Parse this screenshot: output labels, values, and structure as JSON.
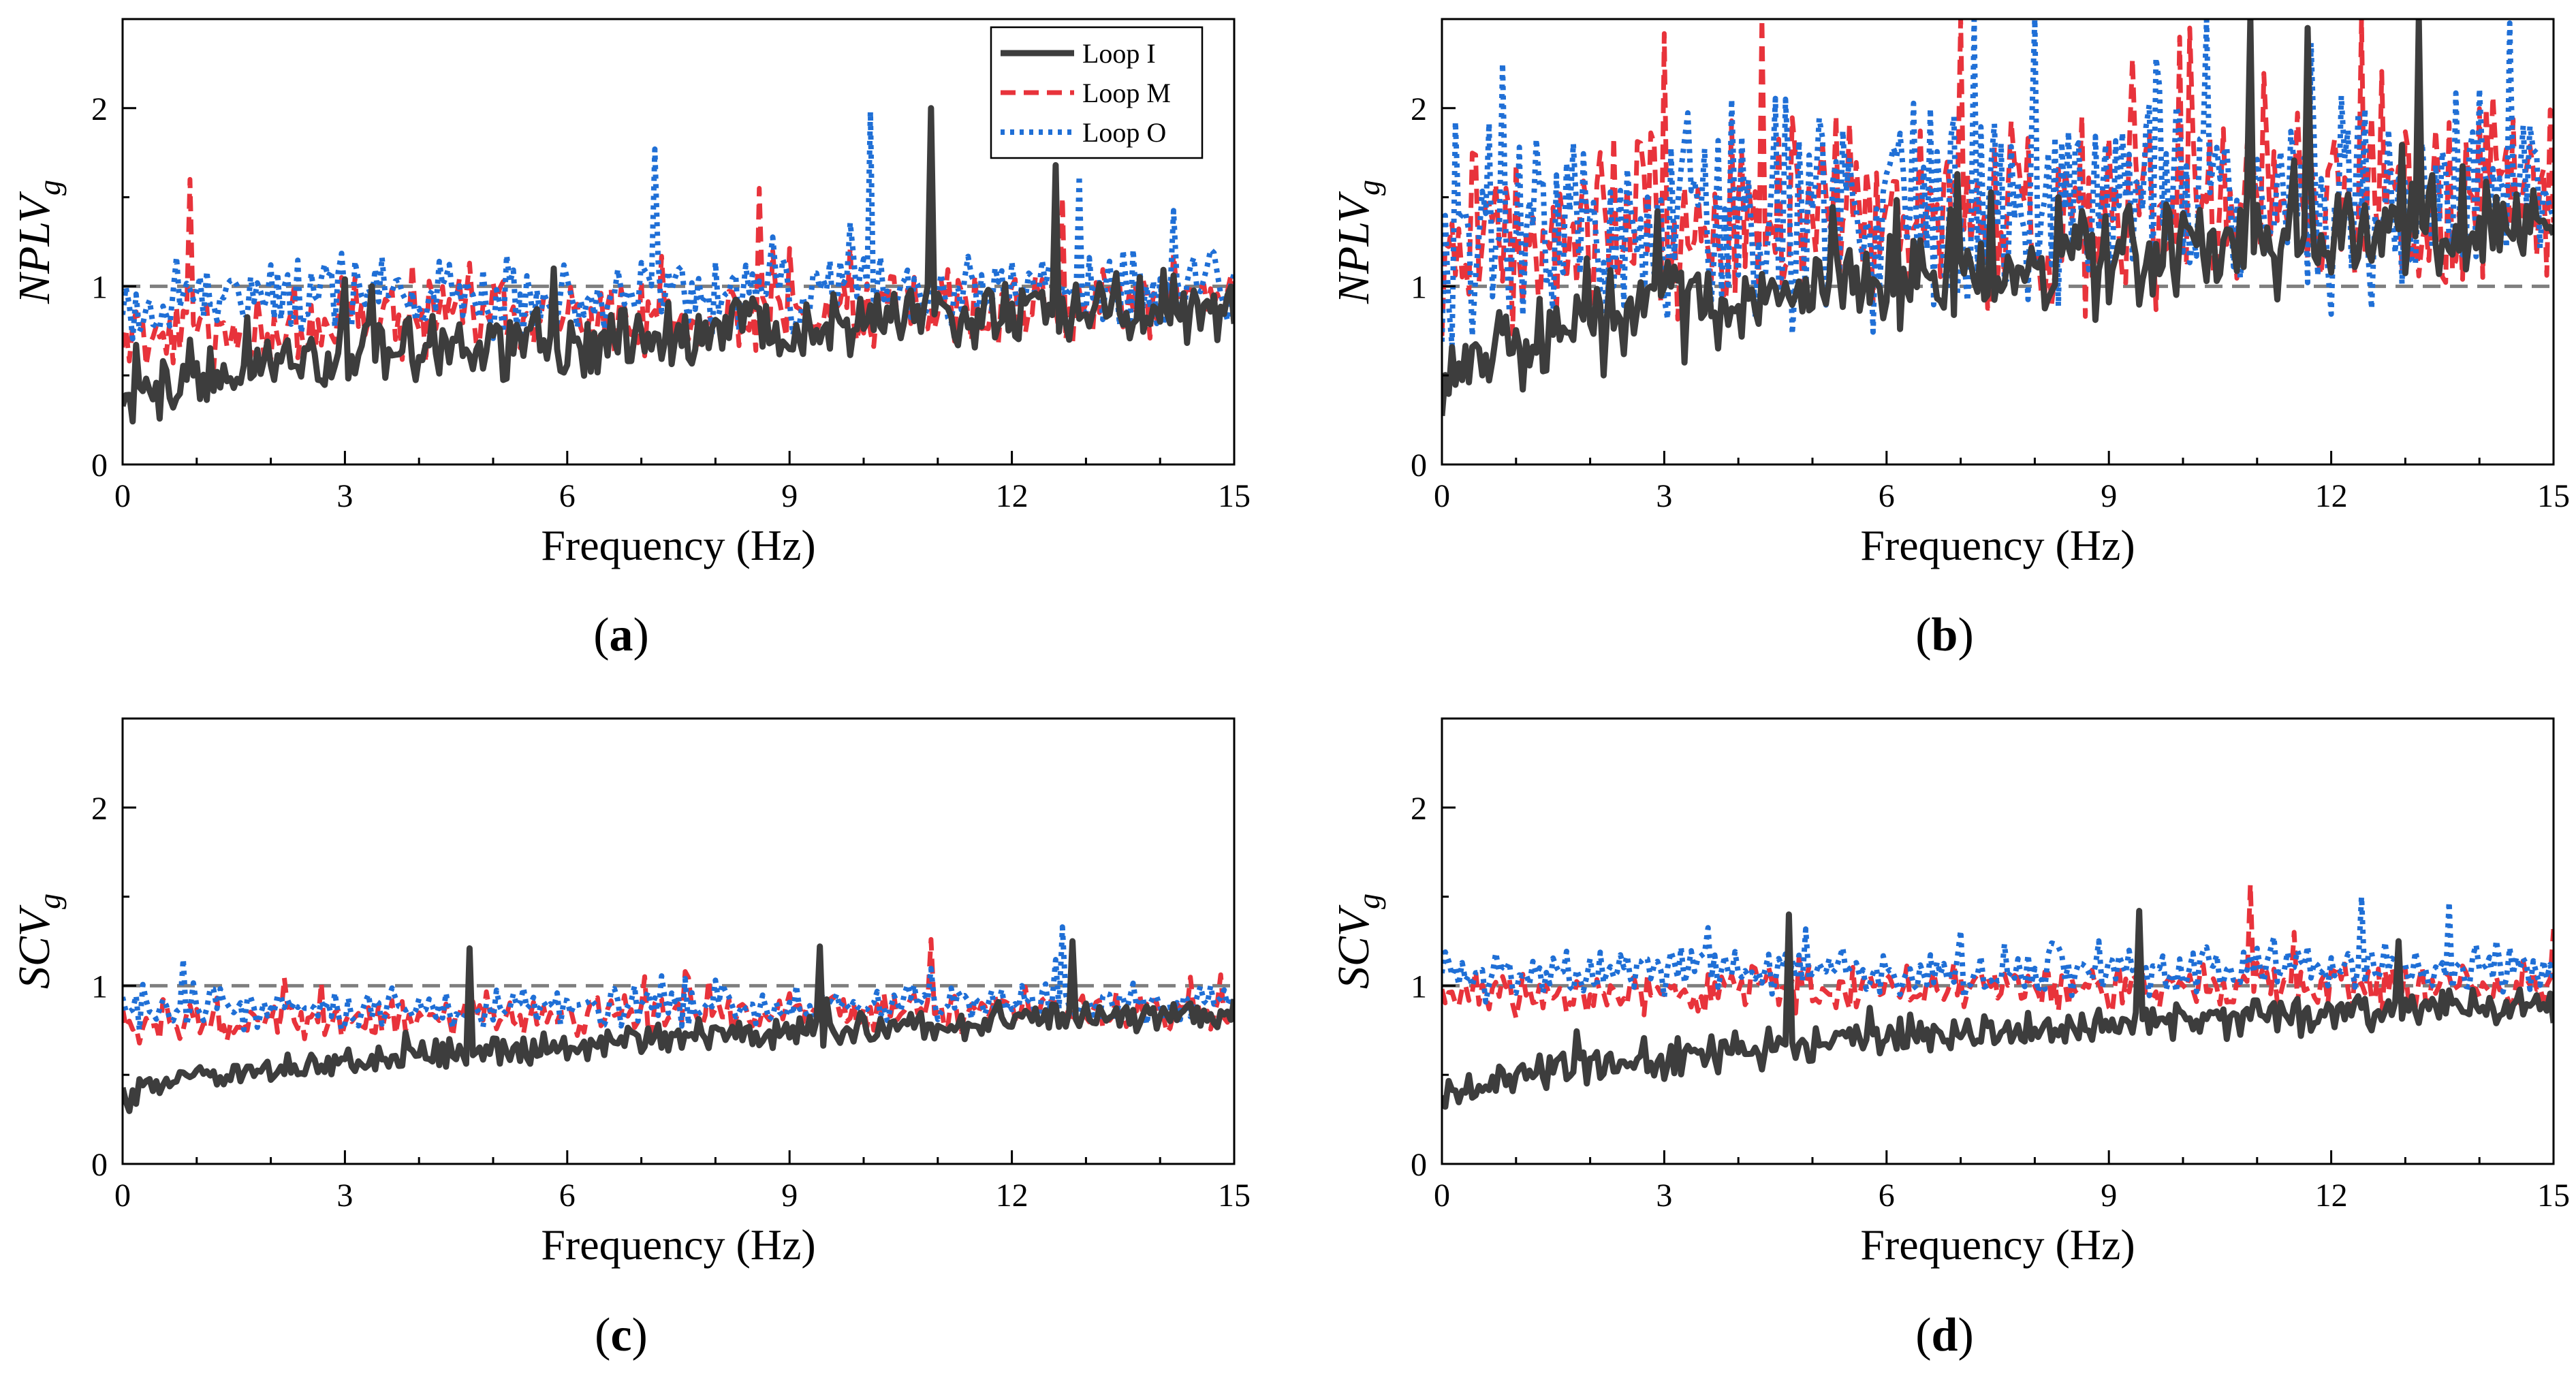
{
  "colors": {
    "loop_i": "#3d3d3d",
    "loop_m": "#e8333b",
    "loop_o": "#1f6fd6",
    "reference": "#7f7f7f",
    "axis": "#000000"
  },
  "legend": {
    "items": [
      "Loop I",
      "Loop M",
      "Loop O"
    ],
    "placement": "top-right of panel (a)"
  },
  "chart_data": [
    {
      "type": "line",
      "panel_label": "(a)",
      "xlabel": "Frequency (Hz)",
      "ylabel": "NPLV",
      "ylabel_sub": "g",
      "xlim": [
        0,
        15
      ],
      "ylim": [
        0,
        2.5
      ],
      "xticks": [
        "0",
        "3",
        "6",
        "9",
        "12",
        "15"
      ],
      "yticks": [
        "0",
        "1",
        "2"
      ],
      "reference_line": 1,
      "series_style": [
        {
          "name": "Loop I",
          "dash": "solid"
        },
        {
          "name": "Loop M",
          "dash": "dashed"
        },
        {
          "name": "Loop O",
          "dash": "dotted"
        }
      ],
      "series_profile": [
        {
          "name": "Loop I",
          "start": 0.35,
          "end": 0.9,
          "spread": 0.14,
          "spikes": [
            [
              10.9,
              2.0
            ],
            [
              12.6,
              1.68
            ],
            [
              5.8,
              1.1
            ]
          ]
        },
        {
          "name": "Loop M",
          "start": 0.7,
          "end": 0.9,
          "spread": 0.16,
          "spikes": [
            [
              0.9,
              1.6
            ],
            [
              8.6,
              1.55
            ],
            [
              12.7,
              1.5
            ]
          ]
        },
        {
          "name": "Loop O",
          "start": 0.9,
          "end": 0.98,
          "spread": 0.16,
          "spikes": [
            [
              10.1,
              1.98
            ],
            [
              7.2,
              1.77
            ],
            [
              12.9,
              1.62
            ]
          ]
        }
      ]
    },
    {
      "type": "line",
      "panel_label": "(b)",
      "xlabel": "Frequency (Hz)",
      "ylabel": "NPLV",
      "ylabel_sub": "g",
      "xlim": [
        0,
        15
      ],
      "ylim": [
        0,
        2.5
      ],
      "xticks": [
        "0",
        "3",
        "6",
        "9",
        "12",
        "15"
      ],
      "yticks": [
        "0",
        "1",
        "2"
      ],
      "reference_line": 1,
      "series_style": [
        {
          "name": "Loop I",
          "dash": "solid"
        },
        {
          "name": "Loop M",
          "dash": "dashed"
        },
        {
          "name": "Loop O",
          "dash": "dotted"
        }
      ],
      "series_profile": [
        {
          "name": "Loop I",
          "start": 0.5,
          "end": 1.35,
          "spread": 0.22,
          "spikes": [
            [
              10.9,
              2.5
            ],
            [
              11.7,
              2.45
            ],
            [
              13.2,
              2.5
            ]
          ]
        },
        {
          "name": "Loop M",
          "start": 1.2,
          "end": 1.5,
          "spread": 0.42,
          "spikes": [
            [
              4.3,
              2.5
            ],
            [
              12.4,
              2.5
            ],
            [
              10.1,
              2.45
            ]
          ]
        },
        {
          "name": "Loop O",
          "start": 1.25,
          "end": 1.5,
          "spread": 0.45,
          "spikes": [
            [
              7.2,
              2.5
            ],
            [
              8.0,
              2.5
            ],
            [
              3.9,
              2.05
            ]
          ]
        }
      ]
    },
    {
      "type": "line",
      "panel_label": "(c)",
      "xlabel": "Frequency (Hz)",
      "ylabel": "SCV",
      "ylabel_sub": "g",
      "xlim": [
        0,
        15
      ],
      "ylim": [
        0,
        2.5
      ],
      "xticks": [
        "0",
        "3",
        "6",
        "9",
        "12",
        "15"
      ],
      "yticks": [
        "0",
        "1",
        "2"
      ],
      "reference_line": 1,
      "series_style": [
        {
          "name": "Loop I",
          "dash": "solid"
        },
        {
          "name": "Loop M",
          "dash": "dashed"
        },
        {
          "name": "Loop O",
          "dash": "dotted"
        }
      ],
      "series_profile": [
        {
          "name": "Loop I",
          "start": 0.35,
          "end": 0.85,
          "spread": 0.06,
          "spikes": [
            [
              4.7,
              1.21
            ],
            [
              12.8,
              1.25
            ],
            [
              9.4,
              1.22
            ]
          ]
        },
        {
          "name": "Loop M",
          "start": 0.78,
          "end": 0.86,
          "spread": 0.08,
          "spikes": [
            [
              10.9,
              1.26
            ],
            [
              7.6,
              1.08
            ]
          ]
        },
        {
          "name": "Loop O",
          "start": 0.85,
          "end": 0.9,
          "spread": 0.08,
          "spikes": [
            [
              12.7,
              1.33
            ],
            [
              0.8,
              1.15
            ]
          ]
        }
      ]
    },
    {
      "type": "line",
      "panel_label": "(d)",
      "xlabel": "Frequency (Hz)",
      "ylabel": "SCV",
      "ylabel_sub": "g",
      "xlim": [
        0,
        15
      ],
      "ylim": [
        0,
        2.5
      ],
      "xticks": [
        "0",
        "3",
        "6",
        "9",
        "12",
        "15"
      ],
      "yticks": [
        "0",
        "1",
        "2"
      ],
      "reference_line": 1,
      "series_style": [
        {
          "name": "Loop I",
          "dash": "solid"
        },
        {
          "name": "Loop M",
          "dash": "dashed"
        },
        {
          "name": "Loop O",
          "dash": "dotted"
        }
      ],
      "series_profile": [
        {
          "name": "Loop I",
          "start": 0.35,
          "end": 0.9,
          "spread": 0.08,
          "spikes": [
            [
              4.7,
              1.4
            ],
            [
              9.4,
              1.42
            ],
            [
              12.9,
              1.25
            ]
          ]
        },
        {
          "name": "Loop M",
          "start": 0.95,
          "end": 1.0,
          "spread": 0.1,
          "spikes": [
            [
              10.9,
              1.57
            ],
            [
              11.5,
              1.3
            ]
          ]
        },
        {
          "name": "Loop O",
          "start": 1.05,
          "end": 1.1,
          "spread": 0.1,
          "spikes": [
            [
              12.4,
              1.5
            ],
            [
              13.6,
              1.47
            ]
          ]
        }
      ]
    }
  ]
}
